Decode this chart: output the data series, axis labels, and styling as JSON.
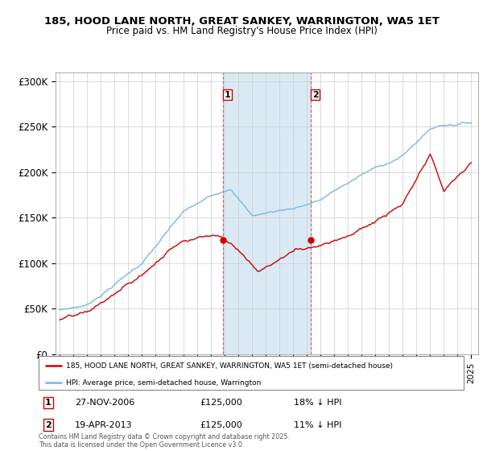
{
  "title": "185, HOOD LANE NORTH, GREAT SANKEY, WARRINGTON, WA5 1ET",
  "subtitle": "Price paid vs. HM Land Registry's House Price Index (HPI)",
  "hpi_color": "#7ab8d9",
  "price_color": "#cc0000",
  "transaction1_x": 2006.9,
  "transaction1_price": 125000,
  "transaction1_date": "27-NOV-2006",
  "transaction1_label": "18% ↓ HPI",
  "transaction2_x": 2013.3,
  "transaction2_price": 125000,
  "transaction2_date": "19-APR-2013",
  "transaction2_label": "11% ↓ HPI",
  "ylim": [
    0,
    310000
  ],
  "yticks": [
    0,
    50000,
    100000,
    150000,
    200000,
    250000,
    300000
  ],
  "ytick_labels": [
    "£0",
    "£50K",
    "£100K",
    "£150K",
    "£200K",
    "£250K",
    "£300K"
  ],
  "footnote": "Contains HM Land Registry data © Crown copyright and database right 2025.\nThis data is licensed under the Open Government Licence v3.0.",
  "legend1": "185, HOOD LANE NORTH, GREAT SANKEY, WARRINGTON, WA5 1ET (semi-detached house)",
  "legend2": "HPI: Average price, semi-detached house, Warrington",
  "shading_color": "#daeaf5",
  "band_start": 2006.9,
  "band_end": 2013.3,
  "xmin": 1994.7,
  "xmax": 2025.5
}
